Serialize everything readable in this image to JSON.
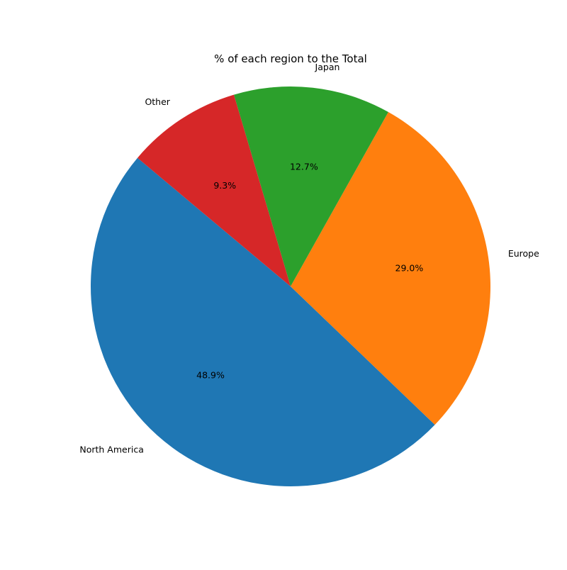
{
  "chart_data": {
    "type": "pie",
    "title": "% of each region to the Total",
    "categories": [
      "North America",
      "Europe",
      "Japan",
      "Other"
    ],
    "values": [
      48.9,
      29.0,
      12.7,
      9.3
    ],
    "percent_labels": [
      "48.9%",
      "29.0%",
      "12.7%",
      "9.3%"
    ],
    "colors": [
      "#1f77b4",
      "#ff7f0e",
      "#2ca02c",
      "#d62728"
    ],
    "start_angle_deg": 140,
    "direction": "counterclockwise",
    "legend": "none"
  }
}
